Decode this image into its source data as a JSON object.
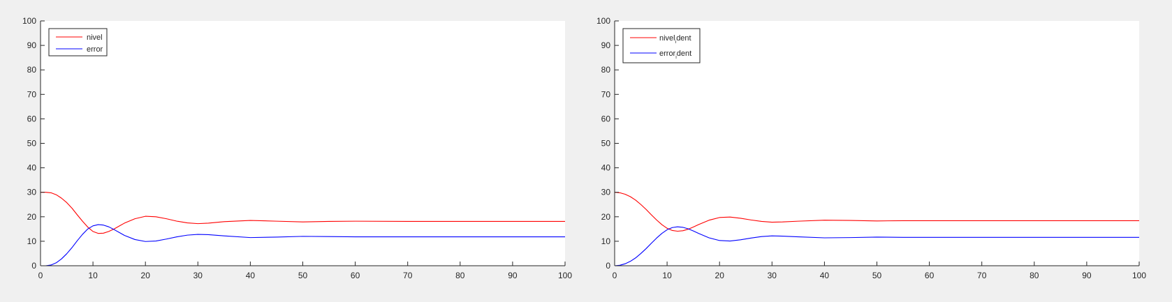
{
  "chart_data": [
    {
      "type": "line",
      "title": "",
      "xlabel": "",
      "ylabel": "",
      "xlim": [
        0,
        100
      ],
      "ylim": [
        0,
        100
      ],
      "xticks": [
        0,
        10,
        20,
        30,
        40,
        50,
        60,
        70,
        80,
        90,
        100
      ],
      "yticks": [
        0,
        10,
        20,
        30,
        40,
        50,
        60,
        70,
        80,
        90,
        100
      ],
      "grid": false,
      "legend_position": "top-left",
      "series": [
        {
          "name": "nivel",
          "color": "#ff0000",
          "x": [
            0,
            1,
            2,
            3,
            4,
            5,
            6,
            7,
            8,
            9,
            10,
            11,
            12,
            13,
            14,
            15,
            16,
            18,
            20,
            22,
            24,
            26,
            28,
            30,
            32,
            35,
            40,
            45,
            50,
            55,
            60,
            70,
            80,
            90,
            100
          ],
          "y": [
            30,
            30,
            29.8,
            29,
            27.6,
            25.8,
            23.5,
            20.8,
            18.2,
            15.8,
            14,
            13.2,
            13.3,
            14,
            15,
            16.2,
            17.4,
            19.2,
            20.2,
            20,
            19.2,
            18.2,
            17.5,
            17.2,
            17.4,
            18,
            18.5,
            18.2,
            17.9,
            18.1,
            18.2,
            18.1,
            18.1,
            18.1,
            18.1
          ]
        },
        {
          "name": "error",
          "color": "#0000ff",
          "x": [
            0,
            1,
            2,
            3,
            4,
            5,
            6,
            7,
            8,
            9,
            10,
            11,
            12,
            13,
            14,
            15,
            16,
            18,
            20,
            22,
            24,
            26,
            28,
            30,
            32,
            35,
            40,
            45,
            50,
            55,
            60,
            70,
            80,
            90,
            100
          ],
          "y": [
            0,
            0,
            0.3,
            1.2,
            2.8,
            4.9,
            7.4,
            10.2,
            12.8,
            15,
            16.3,
            16.8,
            16.6,
            15.9,
            14.8,
            13.6,
            12.4,
            10.7,
            9.9,
            10.1,
            10.9,
            11.8,
            12.5,
            12.8,
            12.7,
            12.2,
            11.5,
            11.7,
            12,
            11.9,
            11.8,
            11.8,
            11.8,
            11.8,
            11.8
          ]
        }
      ]
    },
    {
      "type": "line",
      "title": "",
      "xlabel": "",
      "ylabel": "",
      "xlim": [
        0,
        100
      ],
      "ylim": [
        0,
        100
      ],
      "xticks": [
        0,
        10,
        20,
        30,
        40,
        50,
        60,
        70,
        80,
        90,
        100
      ],
      "yticks": [
        0,
        10,
        20,
        30,
        40,
        50,
        60,
        70,
        80,
        90,
        100
      ],
      "grid": false,
      "legend_position": "top-left",
      "series": [
        {
          "name": "nivel_ident",
          "legend_main": "nivel",
          "legend_sub": "i",
          "legend_tail": "dent",
          "color": "#ff0000",
          "x": [
            0,
            1,
            2,
            3,
            4,
            5,
            6,
            7,
            8,
            9,
            10,
            11,
            12,
            13,
            14,
            15,
            16,
            18,
            20,
            22,
            24,
            26,
            28,
            30,
            32,
            35,
            40,
            45,
            50,
            55,
            60,
            70,
            80,
            90,
            100
          ],
          "y": [
            30,
            29.8,
            29.2,
            28.2,
            26.8,
            25,
            23,
            20.8,
            18.7,
            16.8,
            15.3,
            14.4,
            14.1,
            14.3,
            14.9,
            15.8,
            16.8,
            18.6,
            19.7,
            19.9,
            19.4,
            18.7,
            18.1,
            17.8,
            17.9,
            18.2,
            18.6,
            18.5,
            18.3,
            18.4,
            18.4,
            18.4,
            18.4,
            18.4,
            18.4
          ]
        },
        {
          "name": "error_ident",
          "legend_main": "error",
          "legend_sub": "i",
          "legend_tail": "dent",
          "color": "#0000ff",
          "x": [
            0,
            1,
            2,
            3,
            4,
            5,
            6,
            7,
            8,
            9,
            10,
            11,
            12,
            13,
            14,
            15,
            16,
            18,
            20,
            22,
            24,
            26,
            28,
            30,
            32,
            35,
            40,
            45,
            50,
            55,
            60,
            70,
            80,
            90,
            100
          ],
          "y": [
            0,
            0.2,
            0.8,
            1.8,
            3.2,
            5,
            7,
            9.2,
            11.3,
            13.2,
            14.7,
            15.6,
            15.9,
            15.7,
            15.1,
            14.2,
            13.2,
            11.4,
            10.3,
            10.1,
            10.6,
            11.3,
            11.9,
            12.2,
            12.1,
            11.8,
            11.4,
            11.5,
            11.7,
            11.6,
            11.6,
            11.6,
            11.6,
            11.6,
            11.6
          ]
        }
      ]
    }
  ]
}
